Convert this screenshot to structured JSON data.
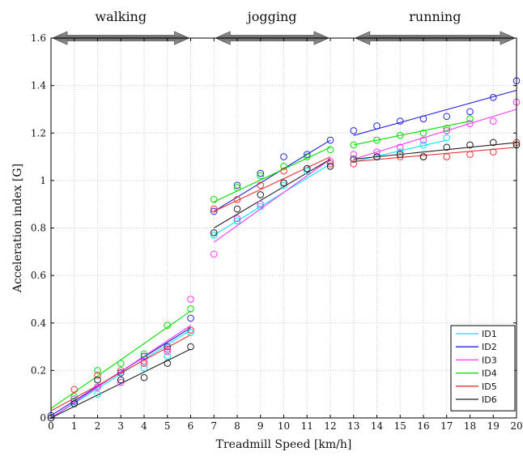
{
  "chart_data": {
    "type": "scatter",
    "xlabel": "Treadmill Speed [km/h]",
    "ylabel": "Acceleration index [G]",
    "xlim": [
      0,
      20
    ],
    "ylim": [
      0,
      1.6
    ],
    "x_ticks": [
      0,
      1,
      2,
      3,
      4,
      5,
      6,
      7,
      8,
      9,
      10,
      11,
      12,
      13,
      14,
      15,
      16,
      17,
      18,
      19,
      20
    ],
    "y_ticks": [
      0,
      0.2,
      0.4,
      0.6,
      0.8,
      1,
      1.2,
      1.4,
      1.6
    ],
    "y_tick_labels": [
      "0",
      "0.2",
      "0.4",
      "0.6",
      "0.8",
      "1",
      "1.2",
      "1.4",
      "1.6"
    ],
    "grid": true,
    "legend_position": "bottom-right",
    "phases": [
      {
        "label": "walking",
        "x_start": 0,
        "x_end": 6
      },
      {
        "label": "jogging",
        "x_start": 7,
        "x_end": 12
      },
      {
        "label": "running",
        "x_start": 13,
        "x_end": 20
      }
    ],
    "series": [
      {
        "name": "ID1",
        "color": "#00e5ff",
        "points": [
          [
            0,
            0.0
          ],
          [
            1,
            0.06
          ],
          [
            2,
            0.1
          ],
          [
            3,
            0.15
          ],
          [
            4,
            0.21
          ],
          [
            5,
            0.26
          ],
          [
            6,
            0.36
          ],
          [
            7,
            0.77
          ],
          [
            8,
            0.83
          ],
          [
            9,
            0.89
          ],
          [
            10,
            0.98
          ],
          [
            11,
            1.04
          ],
          [
            12,
            1.07
          ],
          [
            13,
            1.09
          ],
          [
            14,
            1.1
          ],
          [
            15,
            1.12
          ],
          [
            16,
            1.15
          ],
          [
            17,
            1.18
          ]
        ],
        "fits": [
          [
            0,
            0.0,
            6,
            0.37
          ],
          [
            7,
            0.77,
            12,
            1.07
          ],
          [
            13,
            1.08,
            17,
            1.17
          ]
        ]
      },
      {
        "name": "ID2",
        "color": "#2222dd",
        "points": [
          [
            0,
            0.01
          ],
          [
            1,
            0.07
          ],
          [
            2,
            0.13
          ],
          [
            3,
            0.19
          ],
          [
            4,
            0.26
          ],
          [
            5,
            0.3
          ],
          [
            6,
            0.42
          ],
          [
            7,
            0.87
          ],
          [
            8,
            0.98
          ],
          [
            9,
            1.03
          ],
          [
            10,
            1.1
          ],
          [
            11,
            1.11
          ],
          [
            12,
            1.17
          ],
          [
            13,
            1.21
          ],
          [
            14,
            1.23
          ],
          [
            15,
            1.25
          ],
          [
            16,
            1.26
          ],
          [
            17,
            1.27
          ],
          [
            18,
            1.29
          ],
          [
            19,
            1.35
          ],
          [
            20,
            1.42
          ]
        ],
        "fits": [
          [
            0,
            0.01,
            6,
            0.38
          ],
          [
            7,
            0.87,
            12,
            1.17
          ],
          [
            13,
            1.19,
            20,
            1.38
          ]
        ]
      },
      {
        "name": "ID3",
        "color": "#ff33ff",
        "points": [
          [
            0,
            0.0
          ],
          [
            1,
            0.08
          ],
          [
            2,
            0.13
          ],
          [
            3,
            0.15
          ],
          [
            4,
            0.24
          ],
          [
            5,
            0.28
          ],
          [
            6,
            0.5
          ],
          [
            7,
            0.69
          ],
          [
            8,
            0.84
          ],
          [
            9,
            0.9
          ],
          [
            10,
            0.99
          ],
          [
            11,
            1.05
          ],
          [
            12,
            1.08
          ],
          [
            13,
            1.11
          ],
          [
            14,
            1.12
          ],
          [
            15,
            1.14
          ],
          [
            16,
            1.17
          ],
          [
            17,
            1.21
          ],
          [
            18,
            1.24
          ],
          [
            19,
            1.25
          ],
          [
            20,
            1.33
          ]
        ],
        "fits": [
          [
            0,
            0.0,
            6,
            0.39
          ],
          [
            7,
            0.74,
            12,
            1.09
          ],
          [
            13,
            1.09,
            20,
            1.3
          ]
        ]
      },
      {
        "name": "ID4",
        "color": "#00dd00",
        "points": [
          [
            0,
            0.0
          ],
          [
            1,
            0.09
          ],
          [
            2,
            0.2
          ],
          [
            3,
            0.23
          ],
          [
            4,
            0.27
          ],
          [
            5,
            0.39
          ],
          [
            6,
            0.46
          ],
          [
            7,
            0.92
          ],
          [
            8,
            0.97
          ],
          [
            9,
            1.02
          ],
          [
            10,
            1.06
          ],
          [
            11,
            1.1
          ],
          [
            12,
            1.13
          ],
          [
            13,
            1.15
          ],
          [
            14,
            1.17
          ],
          [
            15,
            1.19
          ],
          [
            16,
            1.2
          ],
          [
            17,
            1.22
          ],
          [
            18,
            1.26
          ]
        ],
        "fits": [
          [
            0,
            0.04,
            6,
            0.45
          ],
          [
            7,
            0.91,
            12,
            1.14
          ],
          [
            13,
            1.15,
            18,
            1.25
          ]
        ]
      },
      {
        "name": "ID5",
        "color": "#ee3333",
        "points": [
          [
            0,
            0.0
          ],
          [
            1,
            0.12
          ],
          [
            2,
            0.18
          ],
          [
            3,
            0.2
          ],
          [
            4,
            0.23
          ],
          [
            5,
            0.29
          ],
          [
            6,
            0.37
          ],
          [
            7,
            0.88
          ],
          [
            8,
            0.92
          ],
          [
            9,
            0.98
          ],
          [
            10,
            1.04
          ],
          [
            11,
            1.05
          ],
          [
            12,
            1.07
          ],
          [
            13,
            1.07
          ],
          [
            14,
            1.1
          ],
          [
            15,
            1.1
          ],
          [
            16,
            1.1
          ],
          [
            17,
            1.1
          ],
          [
            18,
            1.11
          ],
          [
            19,
            1.12
          ],
          [
            20,
            1.16
          ]
        ],
        "fits": [
          [
            0,
            0.03,
            6,
            0.35
          ],
          [
            7,
            0.87,
            12,
            1.1
          ],
          [
            13,
            1.08,
            20,
            1.14
          ]
        ]
      },
      {
        "name": "ID6",
        "color": "#222222",
        "points": [
          [
            0,
            0.0
          ],
          [
            1,
            0.06
          ],
          [
            2,
            0.16
          ],
          [
            3,
            0.16
          ],
          [
            4,
            0.17
          ],
          [
            5,
            0.23
          ],
          [
            6,
            0.3
          ],
          [
            7,
            0.78
          ],
          [
            8,
            0.88
          ],
          [
            9,
            0.94
          ],
          [
            10,
            0.99
          ],
          [
            11,
            1.05
          ],
          [
            12,
            1.06
          ],
          [
            13,
            1.09
          ],
          [
            14,
            1.1
          ],
          [
            15,
            1.11
          ],
          [
            16,
            1.1
          ],
          [
            17,
            1.14
          ],
          [
            18,
            1.15
          ],
          [
            19,
            1.16
          ],
          [
            20,
            1.15
          ]
        ],
        "fits": [
          [
            0,
            0.0,
            6,
            0.29
          ],
          [
            7,
            0.8,
            12,
            1.09
          ],
          [
            13,
            1.09,
            20,
            1.16
          ]
        ]
      }
    ]
  }
}
